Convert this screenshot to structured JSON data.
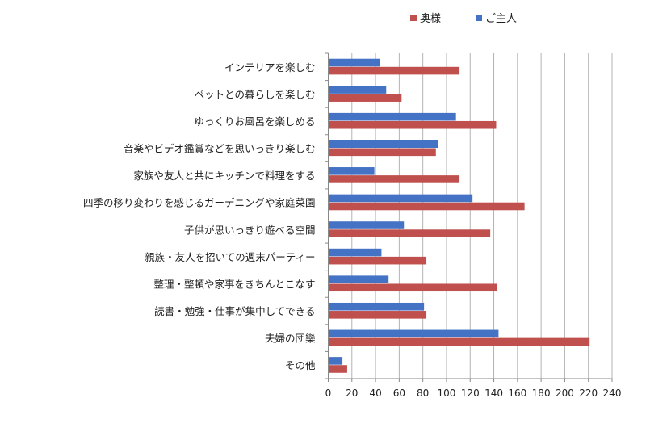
{
  "chart_data": {
    "type": "bar",
    "orientation": "horizontal",
    "categories": [
      "インテリアを楽しむ",
      "ペットとの暮らしを楽しむ",
      "ゆっくりお風呂を楽しめる",
      "音楽やビデオ鑑賞などを思いっきり楽しむ",
      "家族や友人と共にキッチンで料理をする",
      "四季の移り変わりを感じるガーデニングや家庭菜園",
      "子供が思いっきり遊べる空間",
      "親族・友人を招いての週末パーティー",
      "整理・整頓や家事をきちんとこなす",
      "読書・勉強・仕事が集中してできる",
      "夫婦の団欒",
      "その他"
    ],
    "series": [
      {
        "name": "ご主人",
        "color": "#4472c4",
        "values": [
          44,
          49,
          108,
          93,
          39,
          122,
          64,
          45,
          51,
          81,
          144,
          12
        ]
      },
      {
        "name": "奥様",
        "color": "#c0504d",
        "values": [
          111,
          62,
          142,
          91,
          111,
          166,
          137,
          83,
          143,
          83,
          221,
          16
        ]
      }
    ],
    "legend_order": [
      "奥様",
      "ご主人"
    ],
    "xlim": [
      0,
      240
    ],
    "xticks": [
      "0",
      "20",
      "40",
      "60",
      "80",
      "100",
      "120",
      "140",
      "160",
      "180",
      "200",
      "220",
      "240"
    ],
    "grid": "vertical",
    "legend": "top-right",
    "title": "",
    "xlabel": "",
    "ylabel": ""
  }
}
